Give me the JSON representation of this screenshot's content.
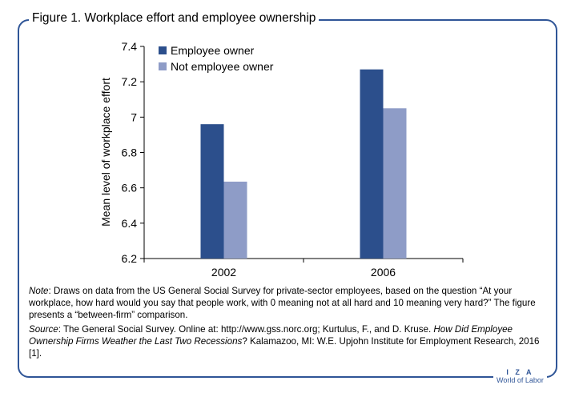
{
  "figure": {
    "title": "Figure 1. Workplace effort and employee ownership"
  },
  "chart_data": {
    "type": "bar",
    "title": "",
    "xlabel": "",
    "ylabel": "Mean level of workplace effort",
    "categories": [
      "2002",
      "2006"
    ],
    "ylim": [
      6.2,
      7.4
    ],
    "yticks": [
      "6.2",
      "6.4",
      "6.6",
      "6.8",
      "7",
      "7.2",
      "7.4"
    ],
    "legend_position": "top-left",
    "grid": false,
    "series": [
      {
        "name": "Employee owner",
        "values": [
          6.96,
          7.27
        ],
        "color": "#2c4f8c"
      },
      {
        "name": "Not employee owner",
        "values": [
          6.635,
          7.05
        ],
        "color": "#8e9cc7"
      }
    ]
  },
  "note": {
    "label": "Note",
    "text": ": Draws on data from the US General Social Survey for private-sector employees, based on the question “At your workplace, how hard would you say that people work, with 0 meaning not at all hard and 10 meaning very hard?” The figure presents a “between-firm” comparison."
  },
  "source": {
    "label": "Source",
    "text1": ": The General Social Survey. Online at: http://www.gss.norc.org; Kurtulus, F., and D. Kruse. ",
    "title_italic": "How Did Employee Ownership Firms Weather the Last Two Recessions",
    "text2": "? Kalamazoo, MI: W.E. Upjohn Institute for Employment Research, 2016 [1]."
  },
  "brand": {
    "line1": "I Z A",
    "line2": "World of Labor"
  }
}
